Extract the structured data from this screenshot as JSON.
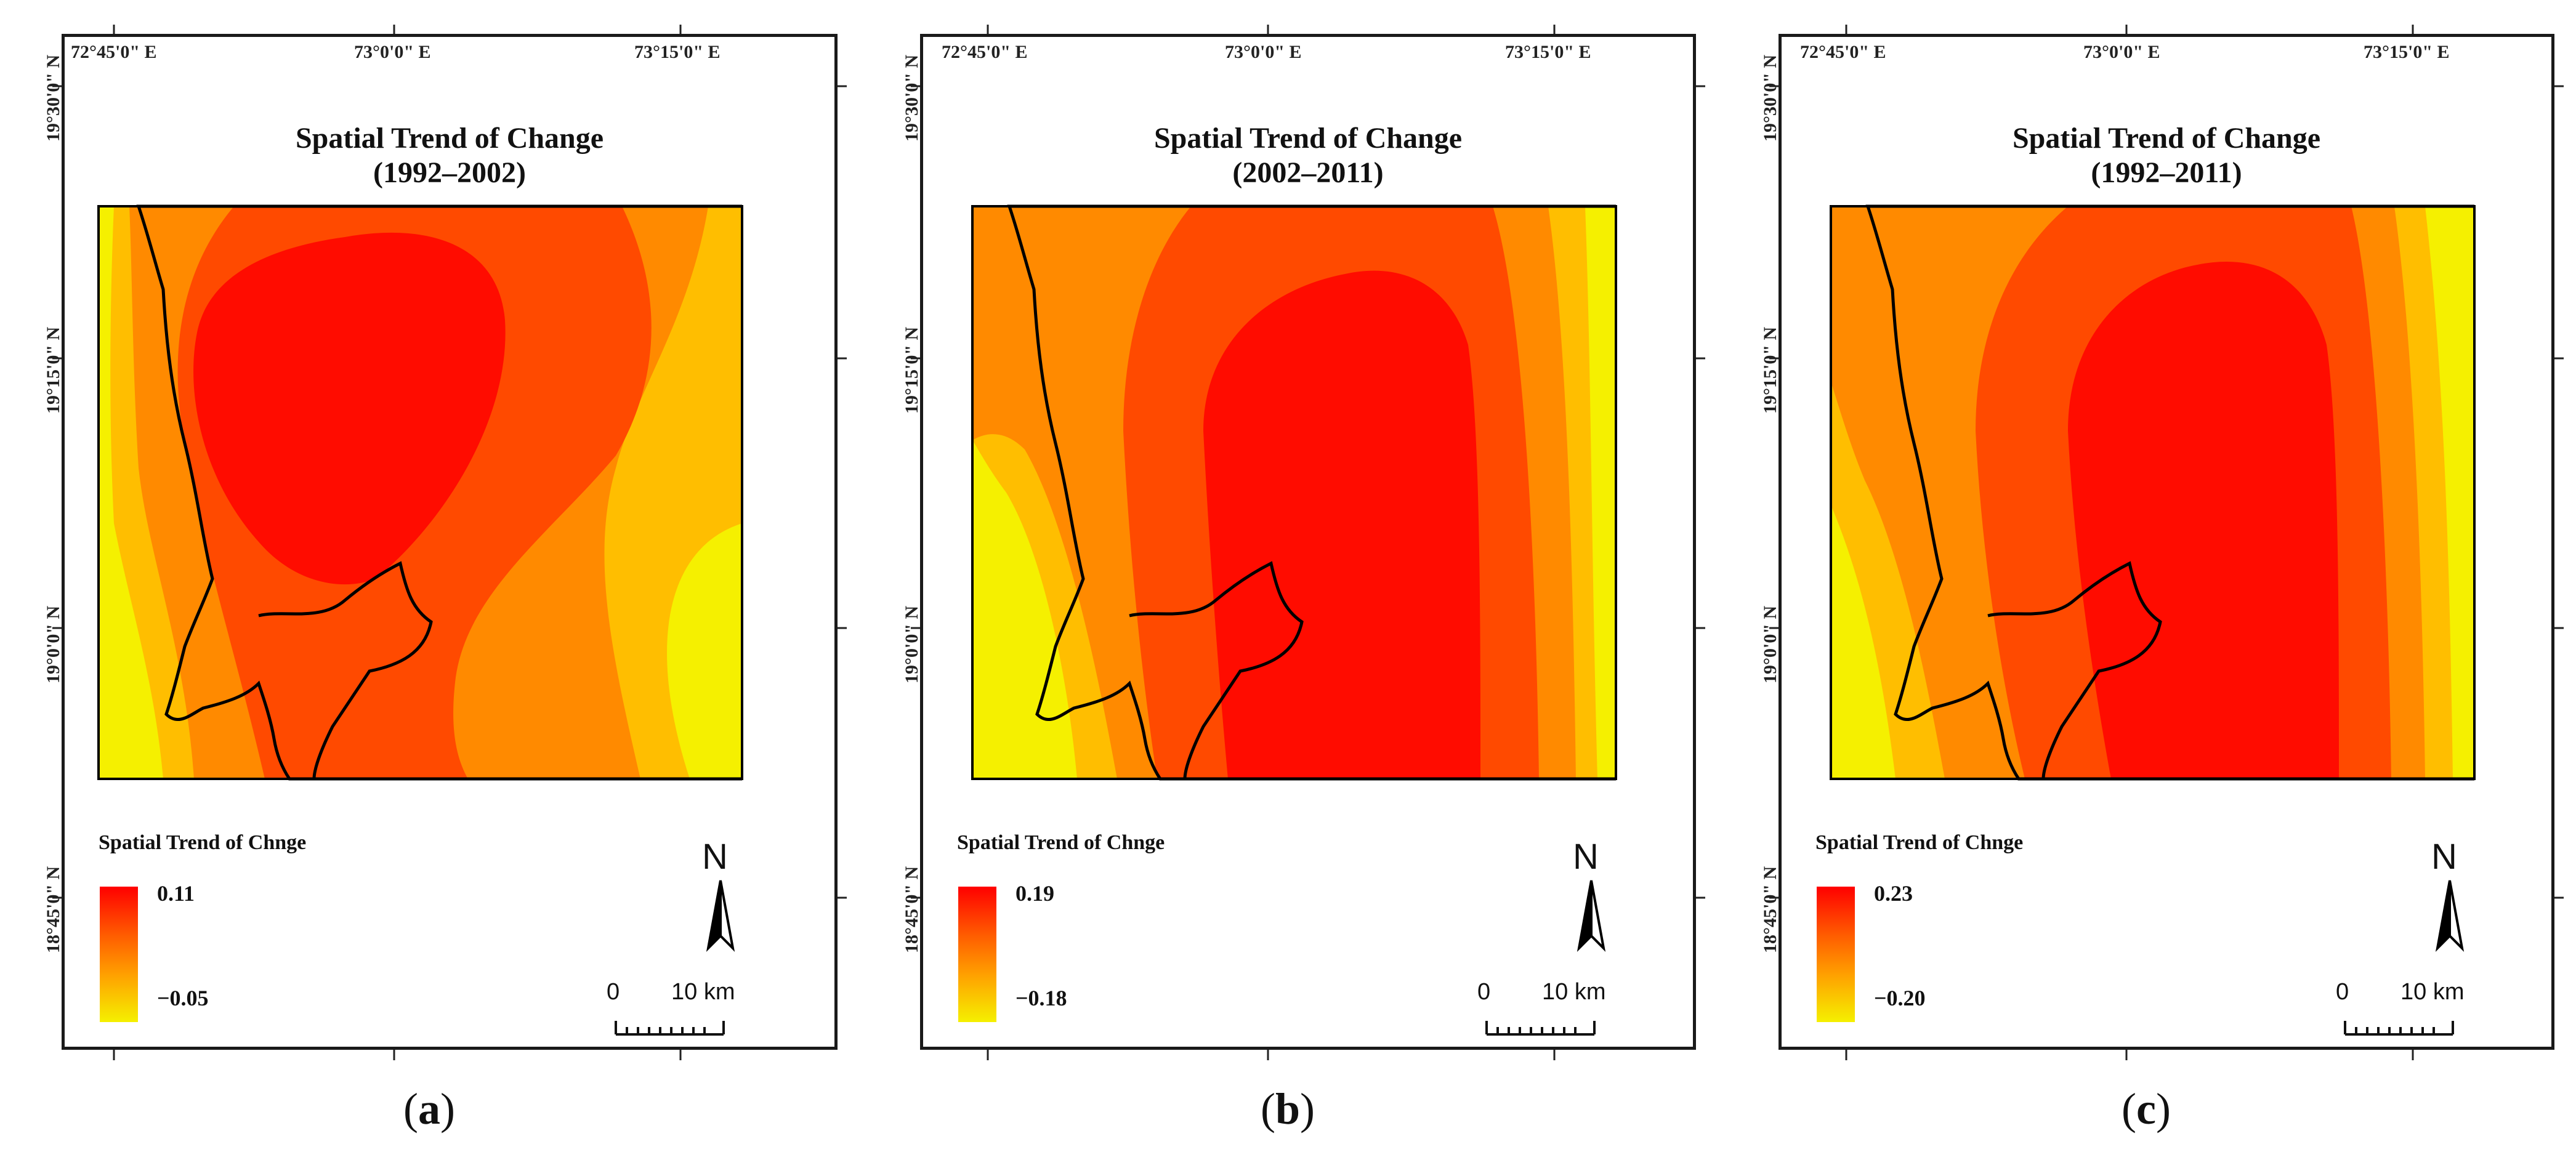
{
  "figure": {
    "panels": [
      {
        "id": "a",
        "title_line1": "Spatial Trend of Change",
        "title_line2": "(1992–2002)",
        "legend_title": "Spatial Trend of Chnge",
        "legend_max": "0.11",
        "legend_min": "−0.05",
        "caption_open": "(",
        "caption_letter": "a",
        "caption_close": ")"
      },
      {
        "id": "b",
        "title_line1": "Spatial Trend of Change",
        "title_line2": "(2002–2011)",
        "legend_title": "Spatial Trend of Chnge",
        "legend_max": "0.19",
        "legend_min": "−0.18",
        "caption_open": "(",
        "caption_letter": "b",
        "caption_close": ")"
      },
      {
        "id": "c",
        "title_line1": "Spatial Trend of Change",
        "title_line2": "(1992–2011)",
        "legend_title": "Spatial Trend of Chnge",
        "legend_max": "0.23",
        "legend_min": "−0.20",
        "caption_open": "(",
        "caption_letter": "c",
        "caption_close": ")"
      }
    ],
    "lon_labels": [
      "72°45'0\" E",
      "73°0'0\" E",
      "73°15'0\" E"
    ],
    "lat_labels": [
      "19°30'0\" N",
      "19°15'0\" N",
      "19°0'0\" N",
      "18°45'0\" N"
    ],
    "north_label": "N",
    "scale": {
      "start": "0",
      "end": "10 km"
    },
    "colors": {
      "class1": "#f5f000",
      "class2": "#ffbe00",
      "class3": "#ff8a00",
      "class4": "#ff4a00",
      "class5": "#ff0c00",
      "frame": "#1a1a1a"
    }
  }
}
